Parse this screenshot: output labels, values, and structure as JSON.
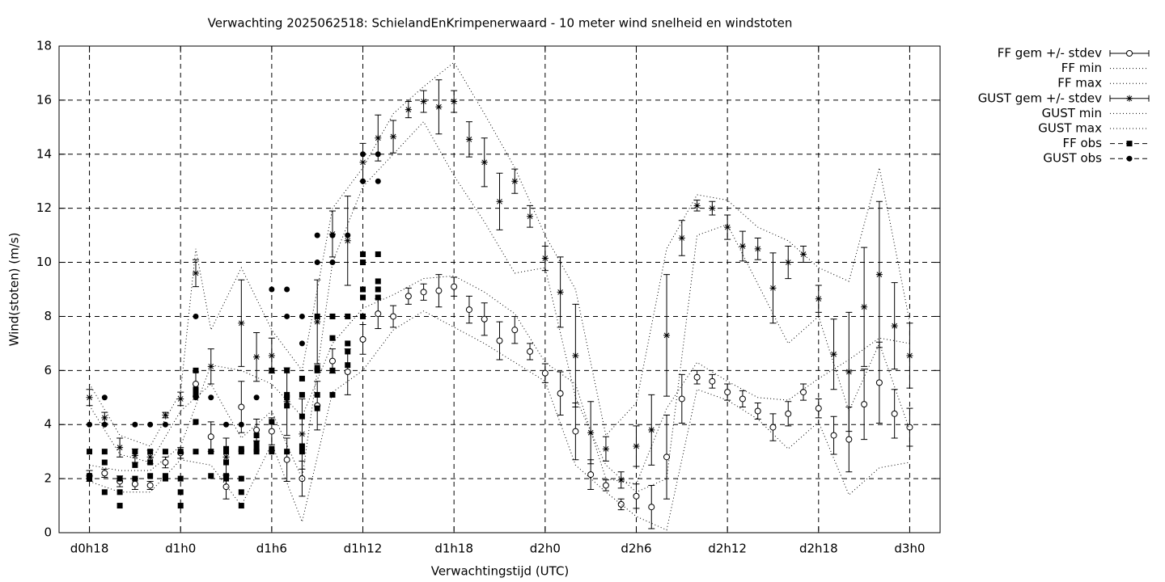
{
  "chart_data": {
    "type": "errorbar",
    "title": "Verwachting 2025062518: SchielandEnKrimpenerwaard - 10 meter wind snelheid en windstoten",
    "x_label": "Verwachtingstijd (UTC)",
    "y_label": "Wind(stoten) (m/s)",
    "xlim": [
      16,
      74
    ],
    "xticks": [
      {
        "value": 18,
        "label": "d0h18"
      },
      {
        "value": 24,
        "label": "d1h0"
      },
      {
        "value": 30,
        "label": "d1h6"
      },
      {
        "value": 36,
        "label": "d1h12"
      },
      {
        "value": 42,
        "label": "d1h18"
      },
      {
        "value": 48,
        "label": "d2h0"
      },
      {
        "value": 54,
        "label": "d2h6"
      },
      {
        "value": 60,
        "label": "d2h12"
      },
      {
        "value": 66,
        "label": "d2h18"
      },
      {
        "value": 72,
        "label": "d3h0"
      }
    ],
    "ylim": [
      0,
      18
    ],
    "yticks": [
      0,
      2,
      4,
      6,
      8,
      10,
      12,
      14,
      16,
      18
    ],
    "grid": true,
    "legend": "outside-top-right",
    "series": [
      {
        "name": "FF gem +/- stdev",
        "kind": "errorbar",
        "marker": "open-circle",
        "color": "#000000",
        "x": [
          18,
          19,
          20,
          21,
          22,
          23,
          24,
          25,
          26,
          27,
          28,
          29,
          30,
          31,
          32,
          33,
          34,
          35,
          36,
          37,
          38,
          39,
          40,
          41,
          42,
          43,
          44,
          45,
          46,
          47,
          48,
          49,
          50,
          51,
          52,
          53,
          54,
          55,
          56,
          57,
          58,
          59,
          60,
          61,
          62,
          63,
          64,
          65,
          66,
          67,
          68,
          69,
          70,
          71,
          72
        ],
        "values": [
          2.1,
          2.2,
          1.9,
          1.8,
          1.75,
          2.6,
          2.95,
          5.5,
          3.55,
          1.7,
          4.65,
          3.8,
          3.75,
          2.7,
          2.0,
          4.7,
          6.35,
          5.95,
          7.15,
          8.1,
          8.0,
          8.75,
          8.9,
          8.95,
          9.1,
          8.25,
          7.9,
          7.1,
          7.5,
          6.7,
          5.9,
          5.15,
          3.75,
          2.15,
          1.75,
          1.05,
          1.35,
          0.95,
          2.8,
          4.95,
          5.75,
          5.6,
          5.2,
          4.95,
          4.5,
          3.9,
          4.4,
          5.2,
          4.6,
          3.6,
          3.45,
          4.75,
          5.55,
          4.4,
          3.9
        ],
        "errors": [
          0.2,
          0.15,
          0.2,
          0.2,
          0.15,
          0.2,
          0.2,
          0.45,
          0.55,
          0.45,
          0.95,
          0.4,
          0.5,
          0.8,
          0.65,
          0.9,
          0.45,
          0.85,
          0.55,
          0.55,
          0.4,
          0.3,
          0.3,
          0.6,
          0.35,
          0.5,
          0.6,
          0.7,
          0.5,
          0.3,
          0.35,
          0.8,
          1.05,
          0.55,
          0.2,
          0.2,
          0.45,
          0.8,
          1.55,
          0.9,
          0.25,
          0.25,
          0.3,
          0.3,
          0.3,
          0.5,
          0.45,
          0.3,
          0.35,
          0.7,
          1.2,
          1.3,
          1.5,
          0.9,
          0.7
        ]
      },
      {
        "name": "FF min",
        "kind": "line",
        "color": "#000000",
        "x": [
          18,
          20,
          22,
          24,
          26,
          28,
          30,
          32,
          34,
          36,
          38,
          40,
          42,
          44,
          46,
          48,
          50,
          52,
          54,
          56,
          58,
          60,
          62,
          64,
          66,
          68,
          70,
          72
        ],
        "values": [
          1.9,
          1.5,
          1.5,
          2.7,
          2.5,
          1.0,
          3.3,
          0.4,
          5.2,
          6.0,
          7.5,
          8.2,
          7.6,
          7.0,
          6.3,
          5.6,
          2.5,
          1.5,
          0.6,
          0.1,
          5.3,
          4.9,
          4.2,
          3.1,
          4.1,
          1.4,
          2.4,
          2.6
        ]
      },
      {
        "name": "FF max",
        "kind": "line",
        "color": "#000000",
        "x": [
          18,
          20,
          22,
          24,
          26,
          28,
          30,
          32,
          34,
          36,
          38,
          40,
          42,
          44,
          46,
          48,
          50,
          52,
          54,
          56,
          58,
          60,
          62,
          64,
          66,
          68,
          70,
          72
        ],
        "values": [
          2.5,
          2.3,
          2.3,
          3.2,
          6.2,
          6.0,
          5.5,
          4.3,
          7.0,
          8.3,
          8.8,
          9.4,
          9.5,
          8.9,
          8.1,
          6.3,
          5.5,
          2.0,
          1.8,
          4.6,
          6.3,
          5.6,
          5.0,
          4.9,
          5.7,
          6.4,
          7.2,
          7.0
        ]
      },
      {
        "name": "GUST gem +/- stdev",
        "kind": "errorbar",
        "marker": "star",
        "color": "#000000",
        "x": [
          18,
          19,
          20,
          21,
          22,
          23,
          24,
          25,
          26,
          27,
          28,
          29,
          30,
          31,
          32,
          33,
          34,
          35,
          36,
          37,
          38,
          39,
          40,
          41,
          42,
          43,
          44,
          45,
          46,
          47,
          48,
          49,
          50,
          51,
          52,
          53,
          54,
          55,
          56,
          57,
          58,
          59,
          60,
          61,
          62,
          63,
          64,
          65,
          66,
          67,
          68,
          69,
          70,
          71,
          72
        ],
        "values": [
          5.0,
          4.25,
          3.15,
          2.85,
          2.8,
          4.35,
          4.95,
          9.6,
          6.15,
          2.8,
          7.75,
          6.5,
          6.55,
          4.85,
          3.65,
          7.8,
          11.05,
          10.8,
          13.7,
          14.6,
          14.65,
          15.65,
          15.95,
          15.75,
          15.95,
          14.55,
          13.7,
          12.25,
          13.0,
          11.7,
          10.15,
          8.9,
          6.55,
          3.7,
          3.1,
          1.95,
          3.2,
          3.8,
          7.3,
          10.9,
          12.1,
          12.0,
          11.3,
          10.6,
          10.5,
          9.05,
          10.0,
          10.3,
          8.65,
          6.6,
          5.95,
          8.35,
          9.55,
          7.65,
          6.55
        ],
        "errors": [
          0.3,
          0.2,
          0.35,
          0.25,
          0.25,
          0.1,
          0.25,
          0.5,
          0.65,
          0.7,
          1.6,
          0.9,
          0.65,
          1.25,
          1.3,
          1.55,
          0.85,
          1.65,
          0.7,
          0.85,
          0.6,
          0.3,
          0.4,
          1.0,
          0.4,
          0.65,
          0.9,
          1.05,
          0.45,
          0.4,
          0.45,
          1.3,
          1.9,
          1.15,
          0.45,
          0.3,
          0.75,
          1.3,
          2.25,
          0.65,
          0.2,
          0.25,
          0.45,
          0.55,
          0.4,
          1.3,
          0.6,
          0.3,
          0.5,
          1.3,
          2.2,
          2.2,
          2.7,
          1.6,
          1.2
        ]
      },
      {
        "name": "GUST min",
        "kind": "line",
        "color": "#000000",
        "x": [
          18,
          20,
          22,
          24,
          26,
          28,
          30,
          32,
          34,
          36,
          38,
          40,
          42,
          44,
          46,
          48,
          50,
          52,
          54,
          56,
          58,
          60,
          62,
          64,
          66,
          68,
          70,
          72
        ],
        "values": [
          4.7,
          2.9,
          2.6,
          4.5,
          5.5,
          3.5,
          4.5,
          2.0,
          10.0,
          12.8,
          14.0,
          15.2,
          13.2,
          11.5,
          9.6,
          9.8,
          5.0,
          2.5,
          1.5,
          2.0,
          11.0,
          11.4,
          9.2,
          7.0,
          8.0,
          4.5,
          7.0,
          3.8
        ]
      },
      {
        "name": "GUST max",
        "kind": "line",
        "color": "#000000",
        "x": [
          18,
          20,
          22,
          24,
          25,
          26,
          28,
          30,
          32,
          34,
          36,
          38,
          40,
          42,
          44,
          46,
          48,
          50,
          52,
          54,
          56,
          58,
          60,
          62,
          64,
          66,
          68,
          70,
          72
        ],
        "values": [
          5.5,
          3.6,
          3.2,
          5.2,
          10.5,
          7.5,
          9.8,
          7.5,
          6.0,
          12.0,
          13.5,
          15.5,
          16.5,
          17.4,
          15.5,
          13.5,
          11.0,
          9.0,
          3.6,
          4.8,
          10.5,
          12.5,
          12.3,
          11.3,
          10.8,
          9.8,
          9.3,
          13.5,
          7.8
        ]
      },
      {
        "name": "FF obs",
        "kind": "points",
        "marker": "square",
        "color": "#000000",
        "x": [
          18,
          18,
          18,
          19,
          19,
          19,
          20,
          20,
          20,
          21,
          21,
          21,
          22,
          22,
          22,
          23,
          23,
          23,
          24,
          24,
          24,
          24,
          25,
          25,
          25,
          25,
          25,
          26,
          26,
          27,
          27,
          27,
          27,
          27,
          28,
          28,
          28,
          28,
          28,
          29,
          29,
          29,
          29,
          30,
          30,
          30,
          30,
          31,
          31,
          31,
          31,
          31,
          32,
          32,
          32,
          32,
          32,
          33,
          33,
          33,
          33,
          33,
          34,
          34,
          34,
          34,
          35,
          35,
          35,
          35,
          36,
          36,
          36,
          36,
          36,
          37,
          37,
          37,
          37
        ],
        "values": [
          3.0,
          2.1,
          2.0,
          3.0,
          2.6,
          1.5,
          2.0,
          1.5,
          1.0,
          3.0,
          2.5,
          2.0,
          3.0,
          2.6,
          2.1,
          3.0,
          2.1,
          2.0,
          3.0,
          2.0,
          1.5,
          1.0,
          6.0,
          5.3,
          5.1,
          4.1,
          3.0,
          3.0,
          2.1,
          3.1,
          3.0,
          2.6,
          2.1,
          2.0,
          3.1,
          3.0,
          2.0,
          1.5,
          1.0,
          3.6,
          3.3,
          3.1,
          3.0,
          6.0,
          4.1,
          3.1,
          3.0,
          6.0,
          5.1,
          5.0,
          4.7,
          3.0,
          5.7,
          5.1,
          4.3,
          3.2,
          3.0,
          8.0,
          6.1,
          6.0,
          5.1,
          4.6,
          8.0,
          7.2,
          6.0,
          5.1,
          8.0,
          7.0,
          6.7,
          6.2,
          10.3,
          10.0,
          9.0,
          8.7,
          8.0,
          10.3,
          9.3,
          9.0,
          8.7
        ]
      },
      {
        "name": "GUST obs",
        "kind": "points",
        "marker": "filled-circle",
        "color": "#000000",
        "x": [
          18,
          19,
          19,
          20,
          21,
          22,
          23,
          24,
          25,
          25,
          26,
          27,
          28,
          28,
          28,
          29,
          30,
          31,
          31,
          32,
          32,
          33,
          33,
          34,
          34,
          35,
          36,
          36,
          37,
          37
        ],
        "values": [
          4.0,
          5.0,
          4.0,
          2.0,
          4.0,
          4.0,
          4.0,
          3.0,
          8.0,
          5.0,
          5.0,
          4.0,
          4.0,
          3.0,
          2.0,
          5.0,
          9.0,
          9.0,
          8.0,
          8.0,
          7.0,
          11.0,
          10.0,
          11.0,
          10.0,
          11.0,
          14.0,
          13.0,
          14.0,
          13.0
        ]
      }
    ]
  }
}
